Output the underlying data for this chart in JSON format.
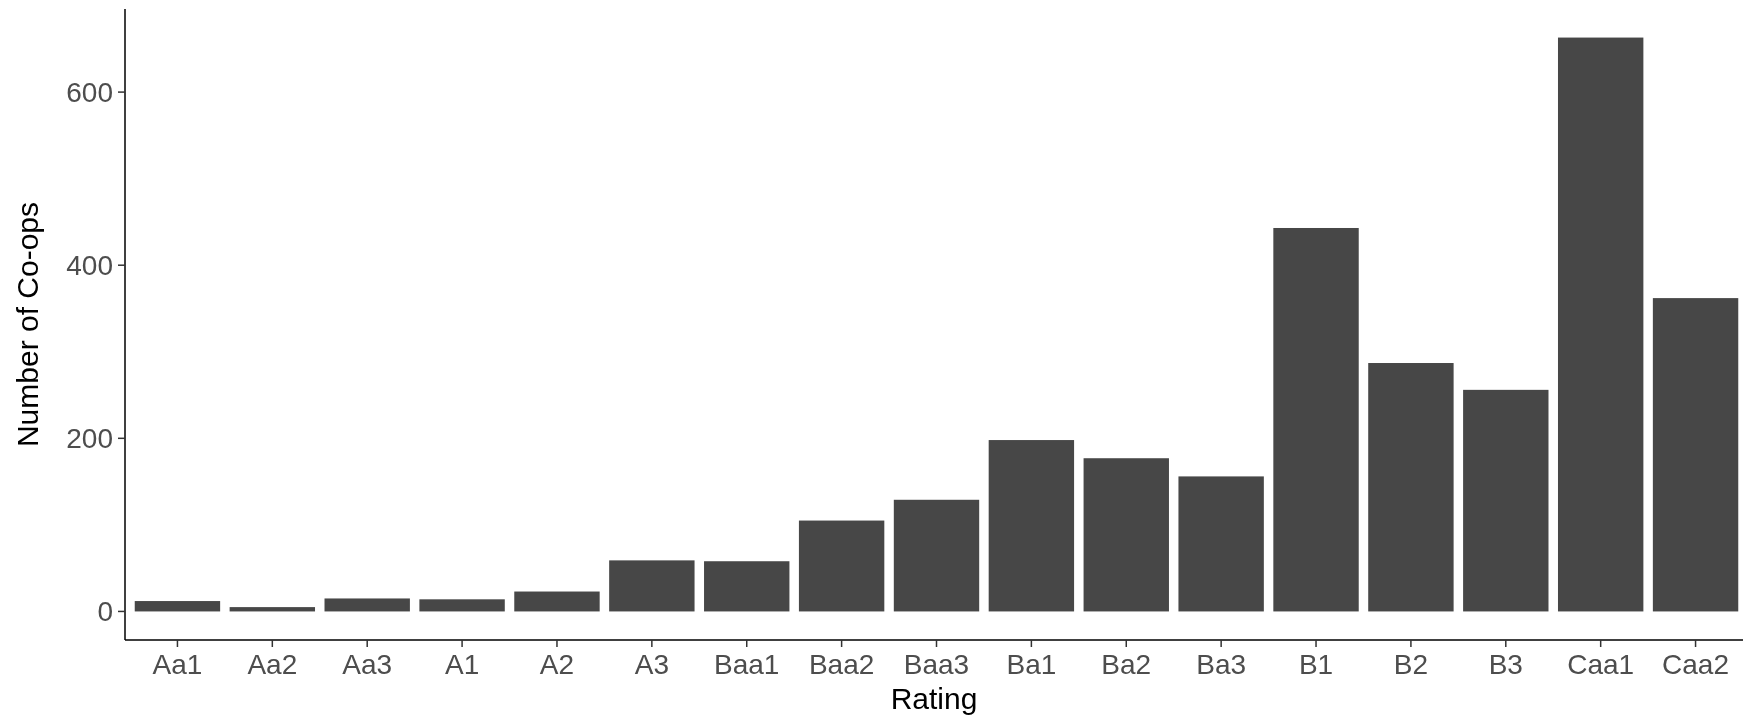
{
  "chart_data": {
    "type": "bar",
    "xlabel": "Rating",
    "ylabel": "Number of Co-ops",
    "categories": [
      "Aa1",
      "Aa2",
      "Aa3",
      "A1",
      "A2",
      "A3",
      "Baa1",
      "Baa2",
      "Baa3",
      "Ba1",
      "Ba2",
      "Ba3",
      "B1",
      "B2",
      "B3",
      "Caa1",
      "Caa2"
    ],
    "values": [
      12,
      5,
      15,
      14,
      23,
      59,
      58,
      105,
      129,
      198,
      177,
      156,
      443,
      287,
      256,
      663,
      362
    ],
    "color": "#474747",
    "ylim": [
      -33,
      696
    ],
    "yticks": [
      0,
      200,
      400,
      600
    ],
    "grid": false
  }
}
